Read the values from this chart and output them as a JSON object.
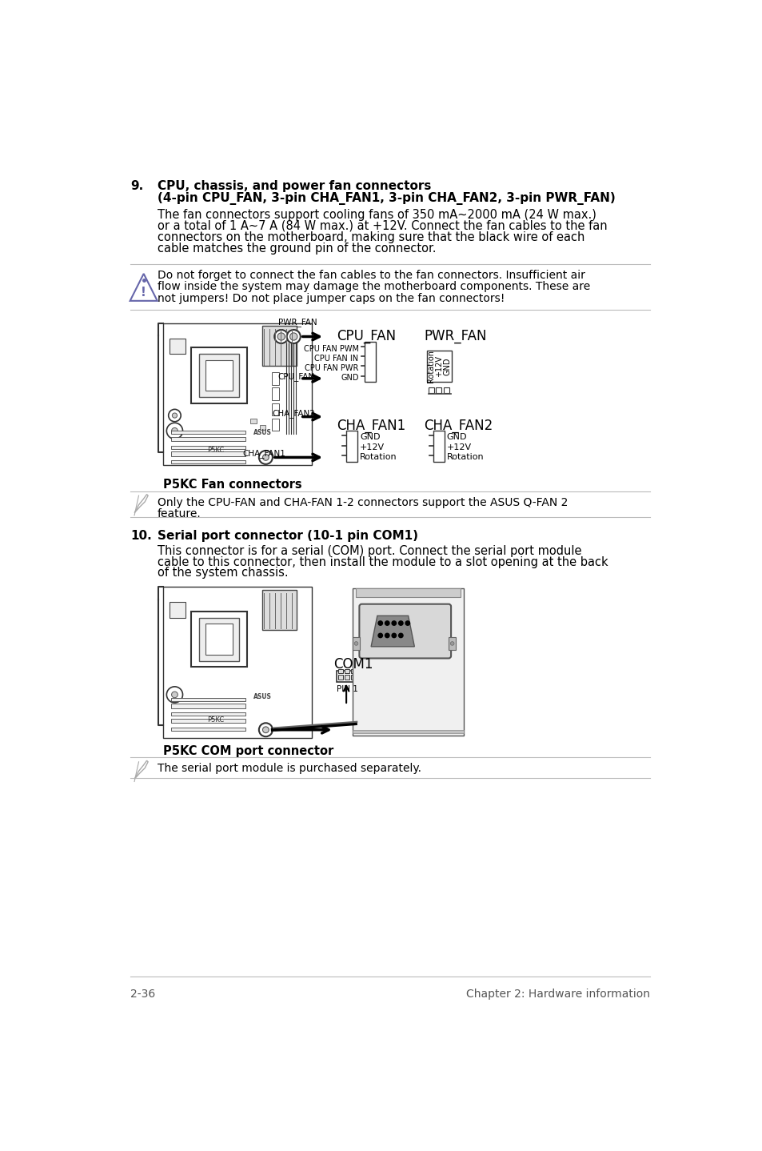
{
  "page_bg": "#ffffff",
  "section9_heading1": "CPU, chassis, and power fan connectors",
  "section9_heading2": "(4-pin CPU_FAN, 3-pin CHA_FAN1, 3-pin CHA_FAN2, 3-pin PWR_FAN)",
  "section9_body_lines": [
    "The fan connectors support cooling fans of 350 mA~2000 mA (24 W max.)",
    "or a total of 1 A~7 A (84 W max.) at +12V. Connect the fan cables to the fan",
    "connectors on the motherboard, making sure that the black wire of each",
    "cable matches the ground pin of the connector."
  ],
  "warning_lines": [
    "Do not forget to connect the fan cables to the fan connectors. Insufficient air",
    "flow inside the system may damage the motherboard components. These are",
    "not jumpers! Do not place jumper caps on the fan connectors!"
  ],
  "fan_caption": "P5KC Fan connectors",
  "note1_lines": [
    "Only the CPU-FAN and CHA-FAN 1-2 connectors support the ASUS Q-FAN 2",
    "feature."
  ],
  "section10_heading1": "Serial port connector (10-1 pin COM1)",
  "section10_body_lines": [
    "This connector is for a serial (COM) port. Connect the serial port module",
    "cable to this connector, then install the module to a slot opening at the back",
    "of the system chassis."
  ],
  "com_caption": "P5KC COM port connector",
  "note2_lines": [
    "The serial port module is purchased separately."
  ],
  "footer_left": "2-36",
  "footer_right": "Chapter 2: Hardware information"
}
